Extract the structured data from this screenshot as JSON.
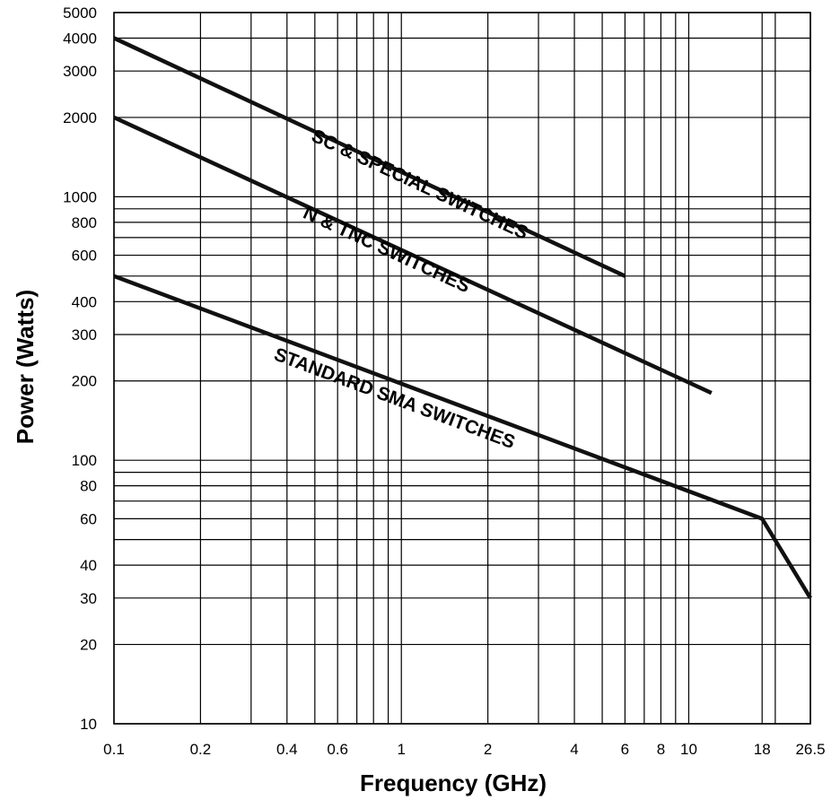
{
  "chart_data": {
    "type": "line",
    "xlabel": "Frequency (GHz)",
    "ylabel": "Power (Watts)",
    "x_scale": "log",
    "y_scale": "log",
    "xlim": [
      0.1,
      26.5
    ],
    "ylim": [
      10,
      5000
    ],
    "grid": true,
    "x_ticks": [
      {
        "value": 0.1,
        "label": "0.1"
      },
      {
        "value": 0.2,
        "label": "0.2"
      },
      {
        "value": 0.4,
        "label": "0.4"
      },
      {
        "value": 0.6,
        "label": "0.6"
      },
      {
        "value": 1,
        "label": "1"
      },
      {
        "value": 2,
        "label": "2"
      },
      {
        "value": 4,
        "label": "4"
      },
      {
        "value": 6,
        "label": "6"
      },
      {
        "value": 8,
        "label": "8"
      },
      {
        "value": 10,
        "label": "10"
      },
      {
        "value": 18,
        "label": "18"
      },
      {
        "value": 26.5,
        "label": "26.5"
      }
    ],
    "y_ticks": [
      {
        "value": 10,
        "label": "10"
      },
      {
        "value": 20,
        "label": "20"
      },
      {
        "value": 30,
        "label": "30"
      },
      {
        "value": 40,
        "label": "40"
      },
      {
        "value": 60,
        "label": "60"
      },
      {
        "value": 80,
        "label": "80"
      },
      {
        "value": 100,
        "label": "100"
      },
      {
        "value": 200,
        "label": "200"
      },
      {
        "value": 300,
        "label": "300"
      },
      {
        "value": 400,
        "label": "400"
      },
      {
        "value": 600,
        "label": "600"
      },
      {
        "value": 800,
        "label": "800"
      },
      {
        "value": 1000,
        "label": "1000"
      },
      {
        "value": 2000,
        "label": "2000"
      },
      {
        "value": 3000,
        "label": "3000"
      },
      {
        "value": 4000,
        "label": "4000"
      },
      {
        "value": 5000,
        "label": "5000"
      }
    ],
    "x_gridlines": [
      0.1,
      0.2,
      0.3,
      0.4,
      0.5,
      0.6,
      0.7,
      0.8,
      0.9,
      1,
      2,
      3,
      4,
      5,
      6,
      7,
      8,
      9,
      10,
      18,
      20,
      26.5
    ],
    "y_gridlines": [
      10,
      20,
      30,
      40,
      50,
      60,
      70,
      80,
      90,
      100,
      200,
      300,
      400,
      500,
      600,
      700,
      800,
      900,
      1000,
      2000,
      3000,
      4000,
      5000
    ],
    "series": [
      {
        "name": "SC & SPECIAL SWITCHES",
        "points": [
          [
            0.1,
            4000
          ],
          [
            6,
            500
          ]
        ]
      },
      {
        "name": "N & TNC SWITCHES",
        "points": [
          [
            0.1,
            2000
          ],
          [
            12,
            180
          ]
        ]
      },
      {
        "name": "STANDARD SMA SWITCHES",
        "points": [
          [
            0.1,
            500
          ],
          [
            18,
            60
          ],
          [
            26.5,
            30
          ]
        ]
      }
    ]
  }
}
